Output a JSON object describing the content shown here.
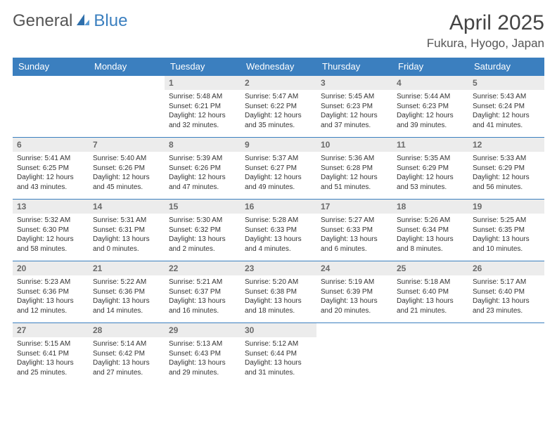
{
  "brand": {
    "part1": "General",
    "part2": "Blue"
  },
  "title": "April 2025",
  "location": "Fukura, Hyogo, Japan",
  "colors": {
    "header_bg": "#3b7fbf",
    "header_fg": "#ffffff",
    "daynum_bg": "#ececec",
    "daynum_fg": "#6a6a6a",
    "row_border": "#3b7fbf",
    "text": "#333333",
    "logo_gray": "#555555",
    "logo_blue": "#3b7fbf"
  },
  "daysOfWeek": [
    "Sunday",
    "Monday",
    "Tuesday",
    "Wednesday",
    "Thursday",
    "Friday",
    "Saturday"
  ],
  "weeks": [
    [
      null,
      null,
      {
        "n": "1",
        "sunrise": "5:48 AM",
        "sunset": "6:21 PM",
        "dh": "12",
        "dm": "32"
      },
      {
        "n": "2",
        "sunrise": "5:47 AM",
        "sunset": "6:22 PM",
        "dh": "12",
        "dm": "35"
      },
      {
        "n": "3",
        "sunrise": "5:45 AM",
        "sunset": "6:23 PM",
        "dh": "12",
        "dm": "37"
      },
      {
        "n": "4",
        "sunrise": "5:44 AM",
        "sunset": "6:23 PM",
        "dh": "12",
        "dm": "39"
      },
      {
        "n": "5",
        "sunrise": "5:43 AM",
        "sunset": "6:24 PM",
        "dh": "12",
        "dm": "41"
      }
    ],
    [
      {
        "n": "6",
        "sunrise": "5:41 AM",
        "sunset": "6:25 PM",
        "dh": "12",
        "dm": "43"
      },
      {
        "n": "7",
        "sunrise": "5:40 AM",
        "sunset": "6:26 PM",
        "dh": "12",
        "dm": "45"
      },
      {
        "n": "8",
        "sunrise": "5:39 AM",
        "sunset": "6:26 PM",
        "dh": "12",
        "dm": "47"
      },
      {
        "n": "9",
        "sunrise": "5:37 AM",
        "sunset": "6:27 PM",
        "dh": "12",
        "dm": "49"
      },
      {
        "n": "10",
        "sunrise": "5:36 AM",
        "sunset": "6:28 PM",
        "dh": "12",
        "dm": "51"
      },
      {
        "n": "11",
        "sunrise": "5:35 AM",
        "sunset": "6:29 PM",
        "dh": "12",
        "dm": "53"
      },
      {
        "n": "12",
        "sunrise": "5:33 AM",
        "sunset": "6:29 PM",
        "dh": "12",
        "dm": "56"
      }
    ],
    [
      {
        "n": "13",
        "sunrise": "5:32 AM",
        "sunset": "6:30 PM",
        "dh": "12",
        "dm": "58"
      },
      {
        "n": "14",
        "sunrise": "5:31 AM",
        "sunset": "6:31 PM",
        "dh": "13",
        "dm": "0"
      },
      {
        "n": "15",
        "sunrise": "5:30 AM",
        "sunset": "6:32 PM",
        "dh": "13",
        "dm": "2"
      },
      {
        "n": "16",
        "sunrise": "5:28 AM",
        "sunset": "6:33 PM",
        "dh": "13",
        "dm": "4"
      },
      {
        "n": "17",
        "sunrise": "5:27 AM",
        "sunset": "6:33 PM",
        "dh": "13",
        "dm": "6"
      },
      {
        "n": "18",
        "sunrise": "5:26 AM",
        "sunset": "6:34 PM",
        "dh": "13",
        "dm": "8"
      },
      {
        "n": "19",
        "sunrise": "5:25 AM",
        "sunset": "6:35 PM",
        "dh": "13",
        "dm": "10"
      }
    ],
    [
      {
        "n": "20",
        "sunrise": "5:23 AM",
        "sunset": "6:36 PM",
        "dh": "13",
        "dm": "12"
      },
      {
        "n": "21",
        "sunrise": "5:22 AM",
        "sunset": "6:36 PM",
        "dh": "13",
        "dm": "14"
      },
      {
        "n": "22",
        "sunrise": "5:21 AM",
        "sunset": "6:37 PM",
        "dh": "13",
        "dm": "16"
      },
      {
        "n": "23",
        "sunrise": "5:20 AM",
        "sunset": "6:38 PM",
        "dh": "13",
        "dm": "18"
      },
      {
        "n": "24",
        "sunrise": "5:19 AM",
        "sunset": "6:39 PM",
        "dh": "13",
        "dm": "20"
      },
      {
        "n": "25",
        "sunrise": "5:18 AM",
        "sunset": "6:40 PM",
        "dh": "13",
        "dm": "21"
      },
      {
        "n": "26",
        "sunrise": "5:17 AM",
        "sunset": "6:40 PM",
        "dh": "13",
        "dm": "23"
      }
    ],
    [
      {
        "n": "27",
        "sunrise": "5:15 AM",
        "sunset": "6:41 PM",
        "dh": "13",
        "dm": "25"
      },
      {
        "n": "28",
        "sunrise": "5:14 AM",
        "sunset": "6:42 PM",
        "dh": "13",
        "dm": "27"
      },
      {
        "n": "29",
        "sunrise": "5:13 AM",
        "sunset": "6:43 PM",
        "dh": "13",
        "dm": "29"
      },
      {
        "n": "30",
        "sunrise": "5:12 AM",
        "sunset": "6:44 PM",
        "dh": "13",
        "dm": "31"
      },
      null,
      null,
      null
    ]
  ],
  "labels": {
    "sunrise": "Sunrise:",
    "sunset": "Sunset:",
    "daylight_prefix": "Daylight:",
    "hours_word": "hours",
    "and_word": "and",
    "minutes_word": "minutes."
  }
}
